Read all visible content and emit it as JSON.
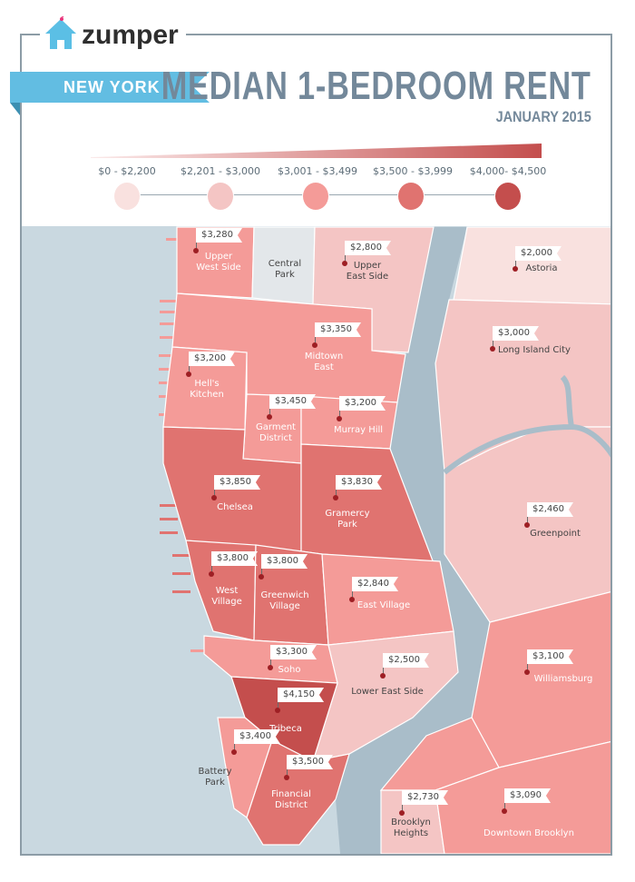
{
  "brand": {
    "name": "zumper"
  },
  "header": {
    "city": "NEW YORK",
    "title": "MEDIAN 1-BEDROOM RENT",
    "subtitle": "JANUARY 2015"
  },
  "legend": [
    {
      "label": "$0 - $2,200",
      "color": "#f9e1df"
    },
    {
      "label": "$2,201 - $3,000",
      "color": "#f4c5c4"
    },
    {
      "label": "$3,001 - $3,499",
      "color": "#f49b98"
    },
    {
      "label": "$3,500 - $3,999",
      "color": "#e07370"
    },
    {
      "label": "$4,000- $4,500",
      "color": "#c44e4d"
    }
  ],
  "colors": {
    "water": "#c9d8e0",
    "river": "#a9bdc9",
    "park": "#e3e7ea",
    "frame": "#8c9ca6",
    "accent": "#62bde2"
  },
  "neighborhoods": [
    {
      "name": "Upper\nWest Side",
      "rent": "$3,280"
    },
    {
      "name": "Central\nPark"
    },
    {
      "name": "Upper\nEast Side",
      "rent": "$2,800"
    },
    {
      "name": "Astoria",
      "rent": "$2,000"
    },
    {
      "name": "Midtown\nEast",
      "rent": "$3,350"
    },
    {
      "name": "Long Island City",
      "rent": "$3,000"
    },
    {
      "name": "Hell's\nKitchen",
      "rent": "$3,200"
    },
    {
      "name": "Garment\nDistrict",
      "rent": "$3,450"
    },
    {
      "name": "Murray Hill",
      "rent": "$3,200"
    },
    {
      "name": "Chelsea",
      "rent": "$3,850"
    },
    {
      "name": "Gramercy\nPark",
      "rent": "$3,830"
    },
    {
      "name": "Greenpoint",
      "rent": "$2,460"
    },
    {
      "name": "West\nVillage",
      "rent": "$3,800"
    },
    {
      "name": "Greenwich\nVillage",
      "rent": "$3,800"
    },
    {
      "name": "East Village",
      "rent": "$2,840"
    },
    {
      "name": "Williamsburg",
      "rent": "$3,100"
    },
    {
      "name": "Soho",
      "rent": "$3,300"
    },
    {
      "name": "Lower East Side",
      "rent": "$2,500"
    },
    {
      "name": "Tribeca",
      "rent": "$4,150"
    },
    {
      "name": "Battery\nPark",
      "rent": "$3,400"
    },
    {
      "name": "Financial\nDistrict",
      "rent": "$3,500"
    },
    {
      "name": "Brooklyn\nHeights",
      "rent": "$2,730"
    },
    {
      "name": "Downtown Brooklyn",
      "rent": "$3,090"
    }
  ]
}
